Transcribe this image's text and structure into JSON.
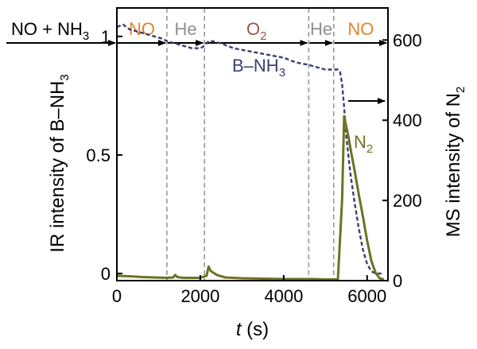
{
  "chart_data": {
    "type": "line",
    "xlabel": "t",
    "xlabel_unit": "(s)",
    "ylabel_left": "IR intensity of B–NH",
    "ylabel_left_sub": "3",
    "ylabel_right": "MS intensity of N",
    "ylabel_right_sub": "2",
    "xlim": [
      0,
      6500
    ],
    "ylim_left": [
      -0.03,
      1.12
    ],
    "ylim_right": [
      0,
      680
    ],
    "x_ticks": [
      {
        "value": 0,
        "label": "0"
      },
      {
        "value": 2000,
        "label": "2000"
      },
      {
        "value": 4000,
        "label": "4000"
      },
      {
        "value": 6000,
        "label": "6000"
      }
    ],
    "y_left_ticks": [
      {
        "value": 0,
        "label": "0"
      },
      {
        "value": 0.5,
        "label": "0.5"
      },
      {
        "value": 1,
        "label": "1"
      }
    ],
    "y_right_ticks": [
      {
        "value": 0,
        "label": "0"
      },
      {
        "value": 200,
        "label": "200"
      },
      {
        "value": 400,
        "label": "400"
      },
      {
        "value": 600,
        "label": "600"
      }
    ],
    "phase_boundaries": [
      1200,
      2100,
      4600,
      5200
    ],
    "pre_label": {
      "text": "NO + NH",
      "sub": "3"
    },
    "phases": [
      {
        "text": "NO",
        "sub": "",
        "start": 0,
        "end": 1200,
        "color": "#e8822a"
      },
      {
        "text": "He",
        "sub": "",
        "start": 1200,
        "end": 2100,
        "color": "#8f8f8f"
      },
      {
        "text": "O",
        "sub": "2",
        "start": 2100,
        "end": 4600,
        "color": "#a0524f"
      },
      {
        "text": "He",
        "sub": "",
        "start": 4600,
        "end": 5200,
        "color": "#8f8f8f"
      },
      {
        "text": "NO",
        "sub": "",
        "start": 5200,
        "end": 6500,
        "color": "#e8822a"
      }
    ],
    "series": [
      {
        "name": "B–NH",
        "name_sub": "3",
        "axis": "left",
        "color": "#3a3f6e",
        "style": "dashed",
        "x": [
          0,
          150,
          300,
          500,
          700,
          900,
          1100,
          1200,
          1400,
          1600,
          1800,
          2000,
          2100,
          2200,
          2300,
          2500,
          2800,
          3100,
          3400,
          3700,
          4000,
          4300,
          4600,
          4800,
          5000,
          5200,
          5300,
          5350,
          5400,
          5450,
          5500,
          5600,
          5700,
          5800,
          5900,
          6000,
          6100,
          6200,
          6300,
          6400
        ],
        "y": [
          1.04,
          1.05,
          1.03,
          1.02,
          1.01,
          1.0,
          0.99,
          0.98,
          0.97,
          0.96,
          0.95,
          0.95,
          0.96,
          0.98,
          0.98,
          0.97,
          0.95,
          0.94,
          0.93,
          0.92,
          0.91,
          0.89,
          0.88,
          0.87,
          0.86,
          0.86,
          0.86,
          0.85,
          0.8,
          0.7,
          0.58,
          0.42,
          0.3,
          0.19,
          0.1,
          0.04,
          0.01,
          0.0,
          0.0,
          0.0
        ]
      },
      {
        "name": "N",
        "name_sub": "2",
        "axis": "right",
        "color": "#6e7223",
        "style": "solid",
        "x": [
          0,
          300,
          600,
          900,
          1200,
          1350,
          1400,
          1450,
          1600,
          2000,
          2150,
          2200,
          2250,
          2400,
          2600,
          3000,
          3500,
          4000,
          4500,
          4700,
          5000,
          5300,
          5400,
          5450,
          5500,
          5550,
          5600,
          5700,
          5800,
          5900,
          6000,
          6100,
          6200,
          6300,
          6400
        ],
        "y": [
          12,
          11,
          9,
          8,
          7,
          8,
          14,
          9,
          7,
          7,
          12,
          35,
          24,
          14,
          8,
          6,
          5,
          4,
          4,
          4,
          3,
          3,
          200,
          410,
          385,
          360,
          330,
          275,
          215,
          160,
          100,
          50,
          20,
          6,
          3
        ]
      }
    ],
    "arrow_right_label": ""
  }
}
